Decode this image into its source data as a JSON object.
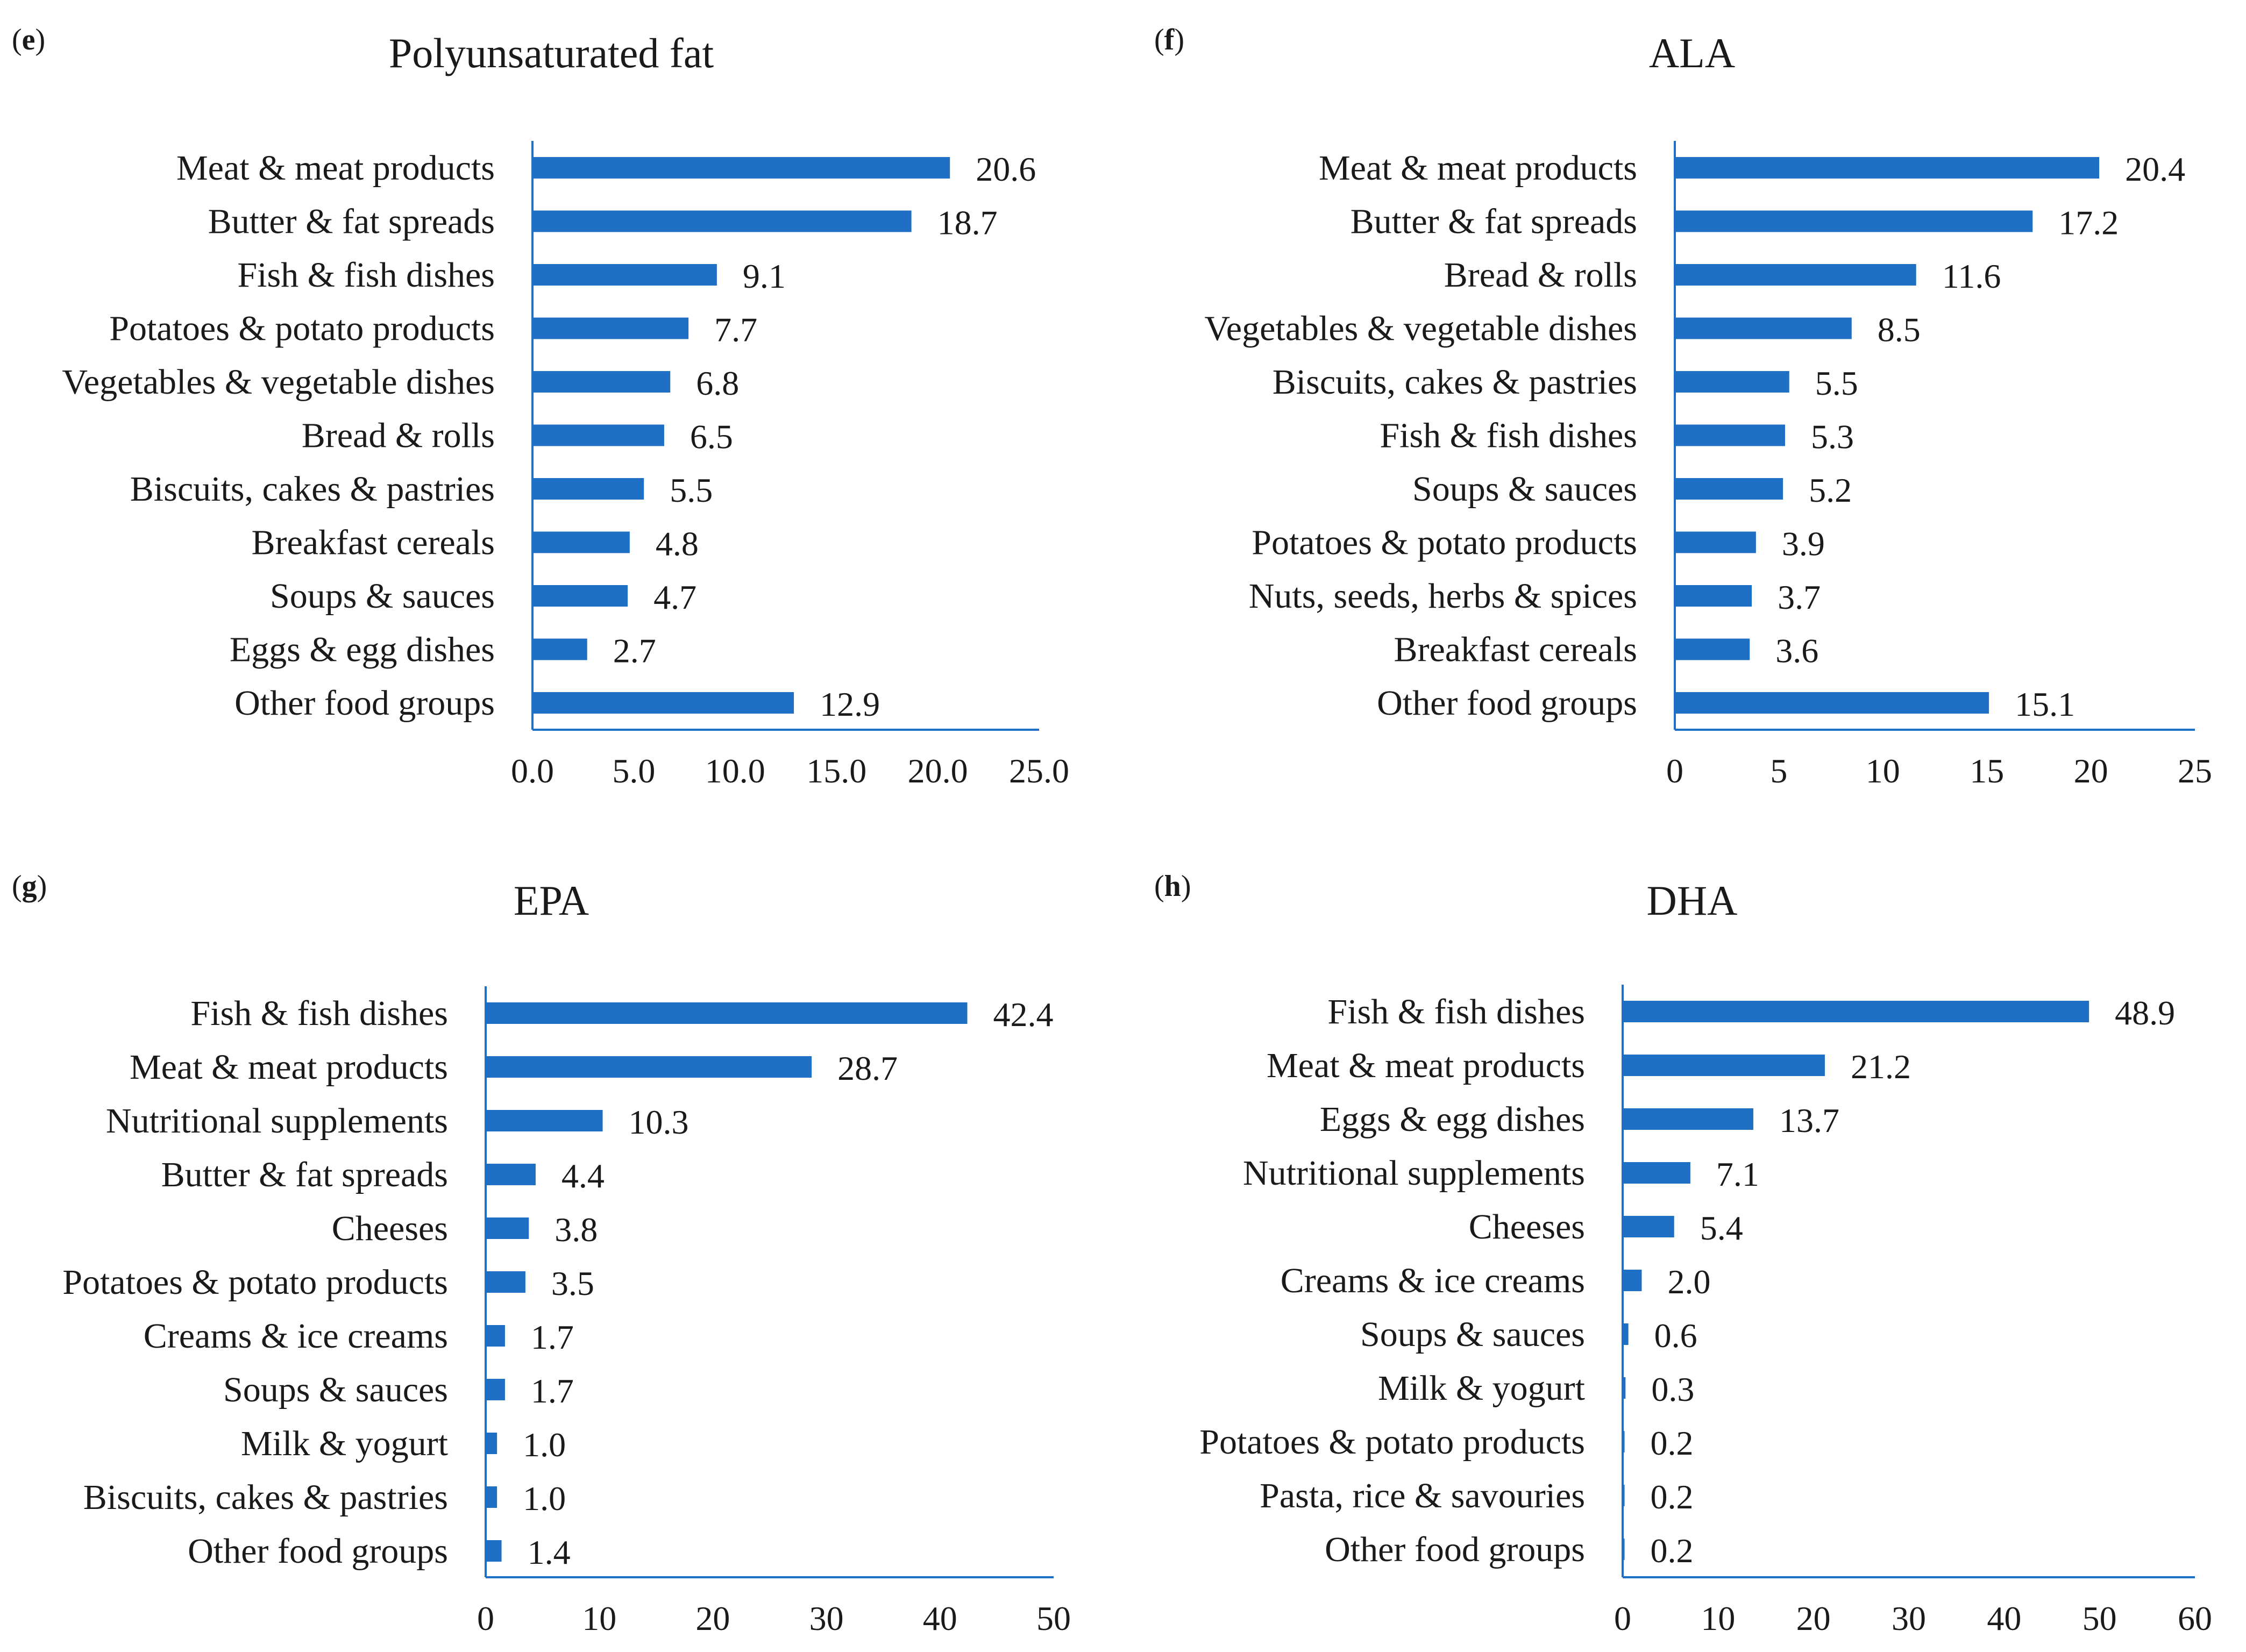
{
  "colors": {
    "bar": "#1f6fc5",
    "axis": "#1f6fc5",
    "text": "#1a1a1a"
  },
  "chart_data": [
    {
      "id": "e",
      "panel_label": "e",
      "type": "bar",
      "orientation": "horizontal",
      "title": "Polyunsaturated fat",
      "categories": [
        "Meat & meat products",
        "Butter & fat spreads",
        "Fish & fish dishes",
        "Potatoes & potato products",
        "Vegetables & vegetable dishes",
        "Bread & rolls",
        "Biscuits, cakes & pastries",
        "Breakfast cereals",
        "Soups & sauces",
        "Eggs & egg dishes",
        "Other food groups"
      ],
      "values": [
        20.6,
        18.7,
        9.1,
        7.7,
        6.8,
        6.5,
        5.5,
        4.8,
        4.7,
        2.7,
        12.9
      ],
      "value_labels": [
        "20.6",
        "18.7",
        "9.1",
        "7.7",
        "6.8",
        "6.5",
        "5.5",
        "4.8",
        "4.7",
        "2.7",
        "12.9"
      ],
      "xlim": [
        0,
        25
      ],
      "ticks": [
        0,
        5,
        10,
        15,
        20,
        25
      ],
      "tick_labels": [
        "0.0",
        "5.0",
        "10.0",
        "15.0",
        "20.0",
        "25.0"
      ]
    },
    {
      "id": "f",
      "panel_label": "f",
      "type": "bar",
      "orientation": "horizontal",
      "title": "ALA",
      "categories": [
        "Meat & meat products",
        "Butter & fat spreads",
        "Bread & rolls",
        "Vegetables & vegetable dishes",
        "Biscuits, cakes & pastries",
        "Fish & fish dishes",
        "Soups & sauces",
        "Potatoes & potato products",
        "Nuts, seeds, herbs & spices",
        "Breakfast cereals",
        "Other food groups"
      ],
      "values": [
        20.4,
        17.2,
        11.6,
        8.5,
        5.5,
        5.3,
        5.2,
        3.9,
        3.7,
        3.6,
        15.1
      ],
      "value_labels": [
        "20.4",
        "17.2",
        "11.6",
        "8.5",
        "5.5",
        "5.3",
        "5.2",
        "3.9",
        "3.7",
        "3.6",
        "15.1"
      ],
      "xlim": [
        0,
        25
      ],
      "ticks": [
        0,
        5,
        10,
        15,
        20,
        25
      ],
      "tick_labels": [
        "0",
        "5",
        "10",
        "15",
        "20",
        "25"
      ]
    },
    {
      "id": "g",
      "panel_label": "g",
      "type": "bar",
      "orientation": "horizontal",
      "title": "EPA",
      "categories": [
        "Fish & fish dishes",
        "Meat & meat products",
        "Nutritional supplements",
        "Butter & fat spreads",
        "Cheeses",
        "Potatoes & potato products",
        "Creams & ice creams",
        "Soups & sauces",
        "Milk & yogurt",
        "Biscuits, cakes & pastries",
        "Other food groups"
      ],
      "values": [
        42.4,
        28.7,
        10.3,
        4.4,
        3.8,
        3.5,
        1.7,
        1.7,
        1.0,
        1.0,
        1.4
      ],
      "value_labels": [
        "42.4",
        "28.7",
        "10.3",
        "4.4",
        "3.8",
        "3.5",
        "1.7",
        "1.7",
        "1.0",
        "1.0",
        "1.4"
      ],
      "xlim": [
        0,
        50
      ],
      "ticks": [
        0,
        10,
        20,
        30,
        40,
        50
      ],
      "tick_labels": [
        "0",
        "10",
        "20",
        "30",
        "40",
        "50"
      ]
    },
    {
      "id": "h",
      "panel_label": "h",
      "type": "bar",
      "orientation": "horizontal",
      "title": "DHA",
      "categories": [
        "Fish & fish dishes",
        "Meat & meat products",
        "Eggs & egg dishes",
        "Nutritional supplements",
        "Cheeses",
        "Creams & ice creams",
        "Soups & sauces",
        "Milk & yogurt",
        "Potatoes & potato products",
        "Pasta, rice & savouries",
        "Other food groups"
      ],
      "values": [
        48.9,
        21.2,
        13.7,
        7.1,
        5.4,
        2.0,
        0.6,
        0.3,
        0.2,
        0.2,
        0.2
      ],
      "value_labels": [
        "48.9",
        "21.2",
        "13.7",
        "7.1",
        "5.4",
        "2.0",
        "0.6",
        "0.3",
        "0.2",
        "0.2",
        "0.2"
      ],
      "xlim": [
        0,
        60
      ],
      "ticks": [
        0,
        10,
        20,
        30,
        40,
        50,
        60
      ],
      "tick_labels": [
        "0",
        "10",
        "20",
        "30",
        "40",
        "50",
        "60"
      ]
    }
  ]
}
